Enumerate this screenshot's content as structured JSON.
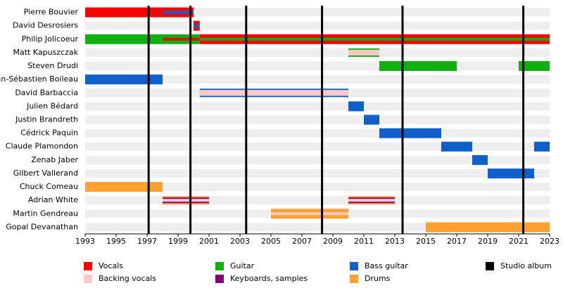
{
  "chart_data": {
    "type": "timeline",
    "roles": [
      {
        "name": "Vocals",
        "color": "#ff0000"
      },
      {
        "name": "Guitar",
        "color": "#11b011"
      },
      {
        "name": "Bass guitar",
        "color": "#1060cc"
      },
      {
        "name": "Backing vocals",
        "color": "#ffc8c8"
      },
      {
        "name": "Keyboards, samples",
        "color": "#800080"
      },
      {
        "name": "Drums",
        "color": "#ffa030"
      }
    ],
    "albums": {
      "name": "Studio album",
      "color": "#000000",
      "x": [
        1997.1,
        1999.8,
        2003.4,
        2008.3,
        2013.5,
        2021.3
      ]
    },
    "members": [
      {
        "name": "Pierre Bouvier",
        "spans": [
          {
            "roles": [
              "Vocals"
            ],
            "start": 1993,
            "end": 1998
          },
          {
            "roles": [
              "Vocals",
              "Bass guitar"
            ],
            "start": 1998,
            "end": 2000
          }
        ]
      },
      {
        "name": "David Desrosiers",
        "spans": [
          {
            "roles": [
              "Vocals",
              "Bass guitar"
            ],
            "start": 2000,
            "end": 2000.4
          }
        ]
      },
      {
        "name": "Philip Jolicoeur",
        "spans": [
          {
            "roles": [
              "Guitar"
            ],
            "start": 1993,
            "end": 1998
          },
          {
            "roles": [
              "Guitar",
              "Vocals"
            ],
            "start": 1998,
            "end": 2000.4
          },
          {
            "roles": [
              "Vocals",
              "Guitar"
            ],
            "start": 2000.4,
            "end": 2023
          }
        ]
      },
      {
        "name": "Matt Kapuszczak",
        "spans": [
          {
            "roles": [
              "Guitar",
              "Backing vocals"
            ],
            "start": 2010,
            "end": 2012,
            "thin": true
          }
        ]
      },
      {
        "name": "Steven Drudi",
        "spans": [
          {
            "roles": [
              "Guitar"
            ],
            "start": 2012,
            "end": 2017
          },
          {
            "roles": [
              "Guitar"
            ],
            "start": 2021,
            "end": 2023
          }
        ]
      },
      {
        "name": "Jean-Sébastien Boileau",
        "spans": [
          {
            "roles": [
              "Bass guitar"
            ],
            "start": 1993,
            "end": 1998
          }
        ]
      },
      {
        "name": "David Barbaccia",
        "spans": [
          {
            "roles": [
              "Bass guitar",
              "Backing vocals"
            ],
            "start": 2000.4,
            "end": 2010,
            "thin": true
          }
        ]
      },
      {
        "name": "Julien Bédard",
        "spans": [
          {
            "roles": [
              "Bass guitar"
            ],
            "start": 2010,
            "end": 2011
          }
        ]
      },
      {
        "name": "Justin Brandreth",
        "spans": [
          {
            "roles": [
              "Bass guitar"
            ],
            "start": 2011,
            "end": 2012
          }
        ]
      },
      {
        "name": "Cédrick Paquin",
        "spans": [
          {
            "roles": [
              "Bass guitar"
            ],
            "start": 2012,
            "end": 2016
          }
        ]
      },
      {
        "name": "Claude Plamondon",
        "spans": [
          {
            "roles": [
              "Bass guitar"
            ],
            "start": 2016,
            "end": 2018
          },
          {
            "roles": [
              "Bass guitar"
            ],
            "start": 2022,
            "end": 2023
          }
        ]
      },
      {
        "name": "Zenab Jaber",
        "spans": [
          {
            "roles": [
              "Bass guitar"
            ],
            "start": 2018,
            "end": 2019
          }
        ]
      },
      {
        "name": "Gilbert Vallerand",
        "spans": [
          {
            "roles": [
              "Bass guitar"
            ],
            "start": 2019,
            "end": 2022
          }
        ]
      },
      {
        "name": "Chuck Comeau",
        "spans": [
          {
            "roles": [
              "Drums"
            ],
            "start": 1993,
            "end": 1998
          }
        ]
      },
      {
        "name": "Adrian White",
        "spans": [
          {
            "roles": [
              "Drums",
              "Keyboards, samples",
              "Backing vocals"
            ],
            "start": 1998,
            "end": 2001,
            "thin": true
          },
          {
            "roles": [
              "Drums",
              "Keyboards, samples",
              "Backing vocals"
            ],
            "start": 2010,
            "end": 2013,
            "thin": true
          }
        ]
      },
      {
        "name": "Martin Gendreau",
        "spans": [
          {
            "roles": [
              "Drums",
              "Backing vocals"
            ],
            "start": 2005,
            "end": 2010
          }
        ]
      },
      {
        "name": "Gopal Devanathan",
        "spans": [
          {
            "roles": [
              "Drums"
            ],
            "start": 2015,
            "end": 2023
          }
        ]
      }
    ],
    "xlim": [
      1993,
      2023
    ],
    "xticks": [
      1993,
      1995,
      1997,
      1999,
      2001,
      2003,
      2005,
      2007,
      2009,
      2011,
      2013,
      2015,
      2017,
      2019,
      2021,
      2023
    ],
    "row_shading": "#eeeeee"
  }
}
